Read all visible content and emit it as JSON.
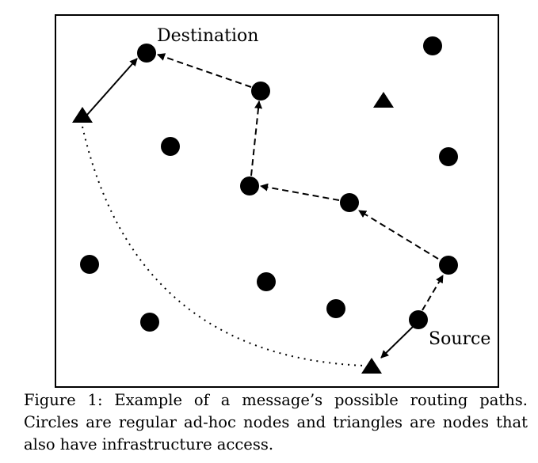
{
  "diagram": {
    "labels": {
      "destination": "Destination",
      "source": "Source"
    },
    "node_types": [
      "regular ad-hoc node (circle)",
      "infrastructure node (triangle)"
    ],
    "edges": {
      "solid": "direct link",
      "dashed": "ad-hoc routing hop",
      "dotted": "infrastructure path"
    }
  },
  "caption": {
    "line1": "Figure 1:  Example of a message’s possible routing paths.",
    "line2": "Circles are regular ad-hoc nodes and triangles are nodes that",
    "line3": "also have infrastructure access."
  }
}
